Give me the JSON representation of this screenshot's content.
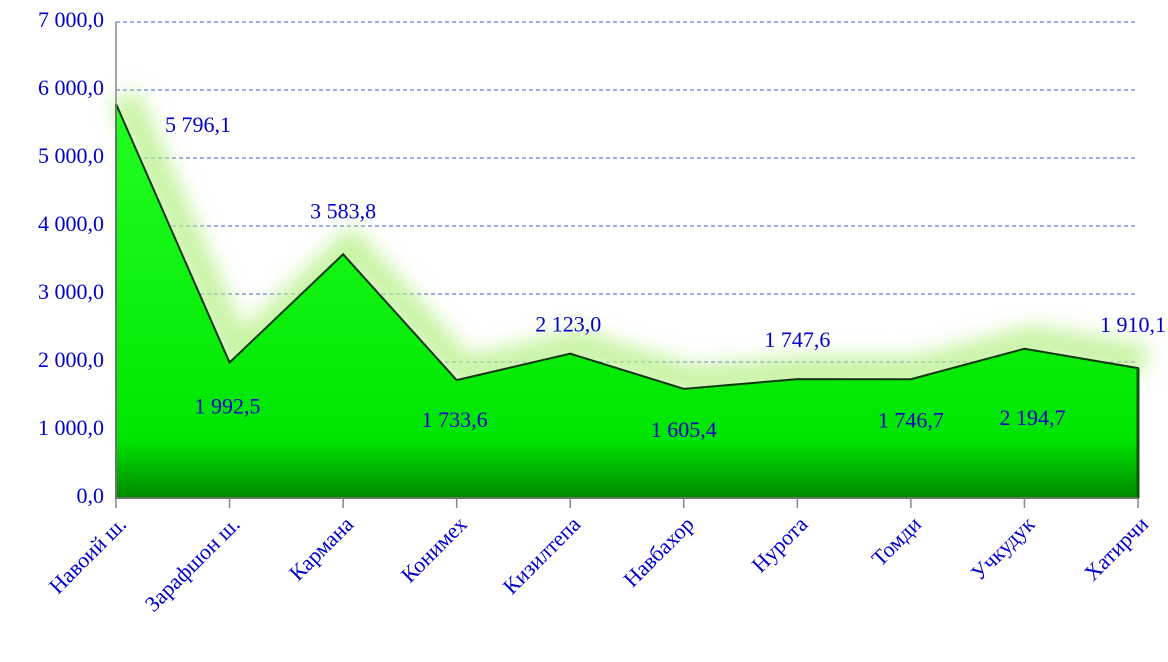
{
  "chart_data": {
    "type": "area",
    "categories": [
      "Навоий ш.",
      "Зарафшон ш.",
      "Кармана",
      "Конимех",
      "Кизилтепа",
      "Навбахор",
      "Нурота",
      "Томди",
      "Учкудук",
      "Хатирчи"
    ],
    "values": [
      5796.1,
      1992.5,
      3583.8,
      1733.6,
      2123.0,
      1605.4,
      1747.6,
      1746.7,
      2194.7,
      1910.1
    ],
    "value_labels": [
      "5 796,1",
      "1 992,5",
      "3 583,8",
      "1 733,6",
      "2 123,0",
      "1 605,4",
      "1 747,6",
      "1 746,7",
      "2 194,7",
      "1 910,1"
    ],
    "color": "#00e600",
    "ylim": [
      0,
      7000
    ],
    "yticks": [
      {
        "value": 0,
        "label": "0,0"
      },
      {
        "value": 1000,
        "label": "1 000,0"
      },
      {
        "value": 2000,
        "label": "2 000,0"
      },
      {
        "value": 3000,
        "label": "3 000,0"
      },
      {
        "value": 4000,
        "label": "4 000,0"
      },
      {
        "value": 5000,
        "label": "5 000,0"
      },
      {
        "value": 6000,
        "label": "6 000,0"
      },
      {
        "value": 7000,
        "label": "7 000,0"
      }
    ],
    "grid": true
  }
}
